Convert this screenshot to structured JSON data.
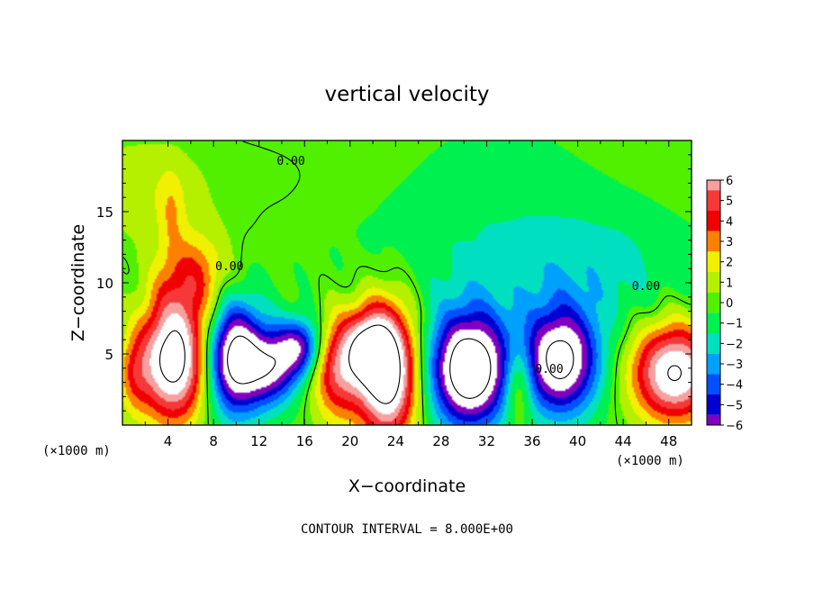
{
  "chart_data": {
    "type": "heatmap",
    "title": "vertical velocity",
    "xlabel": "X−coordinate",
    "ylabel": "Z−coordinate",
    "x_unit": "(×1000 m)",
    "x_unit_right": "(×1000 m)",
    "xlim": [
      0,
      50
    ],
    "ylim": [
      0,
      20
    ],
    "x_ticks": [
      4,
      8,
      12,
      16,
      20,
      24,
      28,
      32,
      36,
      40,
      44,
      48
    ],
    "x_tick_labels": [
      "4",
      "8",
      "12",
      "16",
      "20",
      "24",
      "28",
      "32",
      "36",
      "40",
      "44",
      "48"
    ],
    "y_ticks": [
      5,
      10,
      15
    ],
    "y_tick_labels": [
      "5",
      "10",
      "15"
    ],
    "colorbar": {
      "min": -6,
      "max": 6,
      "labels": [
        "6",
        "5",
        "4",
        "3",
        "2",
        "1",
        "0",
        "−1",
        "−2",
        "−3",
        "−4",
        "−5",
        "−6"
      ],
      "colors": [
        "#f7a0a0",
        "#f53838",
        "#f00000",
        "#ff8000",
        "#f0f000",
        "#b4f000",
        "#50f000",
        "#00f050",
        "#00e0c0",
        "#00a0ff",
        "#0050ff",
        "#0000d0",
        "#8000c0"
      ],
      "saturated_high_color": "#ffffff"
    },
    "contour_interval_label": "CONTOUR INTERVAL = 8.000E+00",
    "contour_labels": [
      {
        "text": "0.00",
        "x": 14.8,
        "z": 18.6
      },
      {
        "text": "0.00",
        "x": 9.4,
        "z": 11.2
      },
      {
        "text": "0.00",
        "x": 37.5,
        "z": 4.0
      },
      {
        "text": "0.00",
        "x": 46.0,
        "z": 9.8
      }
    ],
    "features": [
      {
        "sign": "up",
        "x": 4.5,
        "z": 4.6,
        "sx": 2.1,
        "sz": 3.0,
        "w": 9.5
      },
      {
        "sign": "up",
        "x": 6.2,
        "z": 10.5,
        "sx": 2.2,
        "sz": 2.2,
        "w": 3.5
      },
      {
        "sign": "up",
        "x": 4.3,
        "z": 15.0,
        "sx": 0.8,
        "sz": 2.0,
        "w": 1.6
      },
      {
        "sign": "up",
        "x": 1.0,
        "z": 3.5,
        "sx": 1.0,
        "sz": 2.0,
        "w": 2.5
      },
      {
        "sign": "down",
        "x": 9.9,
        "z": 4.7,
        "sx": 1.8,
        "sz": 2.7,
        "w": -9.0
      },
      {
        "sign": "down",
        "x": 13.2,
        "z": 4.0,
        "sx": 1.6,
        "sz": 1.8,
        "w": -5.5
      },
      {
        "sign": "down",
        "x": 15.6,
        "z": 5.5,
        "sx": 1.4,
        "sz": 1.4,
        "w": -5.5
      },
      {
        "sign": "up",
        "x": 18.9,
        "z": 4.0,
        "sx": 1.6,
        "sz": 2.6,
        "w": 5.5
      },
      {
        "sign": "up",
        "x": 23.3,
        "z": 3.7,
        "sx": 1.8,
        "sz": 3.3,
        "w": 10.0
      },
      {
        "sign": "up",
        "x": 21.5,
        "z": 5.5,
        "sx": 1.4,
        "sz": 1.8,
        "w": 5.0
      },
      {
        "sign": "down",
        "x": 30.5,
        "z": 3.9,
        "sx": 2.4,
        "sz": 2.8,
        "w": -10.0
      },
      {
        "sign": "up",
        "x": 34.8,
        "z": 3.0,
        "sx": 0.9,
        "sz": 2.0,
        "w": 3.5
      },
      {
        "sign": "down",
        "x": 38.5,
        "z": 4.5,
        "sx": 2.3,
        "sz": 2.6,
        "w": -8.5
      },
      {
        "sign": "up",
        "x": 48.5,
        "z": 3.7,
        "sx": 2.6,
        "sz": 2.4,
        "w": 8.5
      },
      {
        "sign": "down",
        "x": 33.0,
        "z": 13.5,
        "sx": 9.0,
        "sz": 5.0,
        "w": -1.3
      },
      {
        "sign": "down",
        "x": 42.0,
        "z": 11.0,
        "sx": 6.0,
        "sz": 3.0,
        "w": -1.2
      },
      {
        "sign": "up",
        "x": 2.0,
        "z": 16.5,
        "sx": 3.5,
        "sz": 2.5,
        "w": 1.1
      }
    ]
  }
}
